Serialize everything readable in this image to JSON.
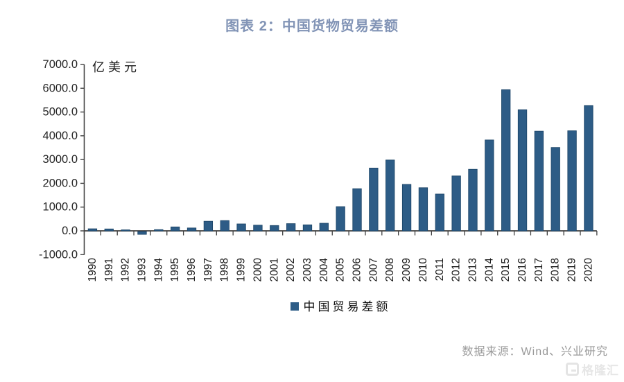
{
  "title": "图表 2：中国货物贸易差额",
  "chart_data": {
    "type": "bar",
    "title": "图表 2：中国货物贸易差额",
    "unit_label": "亿美元",
    "series_name": "中国贸易差额",
    "categories": [
      "1990",
      "1991",
      "1992",
      "1993",
      "1994",
      "1995",
      "1996",
      "1997",
      "1998",
      "1999",
      "2000",
      "2001",
      "2002",
      "2003",
      "2004",
      "2005",
      "2006",
      "2007",
      "2008",
      "2009",
      "2010",
      "2011",
      "2012",
      "2013",
      "2014",
      "2015",
      "2016",
      "2017",
      "2018",
      "2019",
      "2020"
    ],
    "values": [
      87.5,
      81.2,
      43.5,
      -122.2,
      53.9,
      167.0,
      122.2,
      404.2,
      434.7,
      292.3,
      241.1,
      225.5,
      304.3,
      254.7,
      320.9,
      1020.0,
      1774.7,
      2643.4,
      2981.3,
      1956.1,
      1815.1,
      1549.0,
      2311.1,
      2590.2,
      3824.6,
      5939.0,
      5097.0,
      4195.4,
      3509.5,
      4210.9,
      5269.9
    ],
    "ylim": [
      -1000,
      7000
    ],
    "ytick_step": 1000,
    "ytick_labels": [
      "-1000.0",
      "0.0",
      "1000.0",
      "2000.0",
      "3000.0",
      "4000.0",
      "5000.0",
      "6000.0",
      "7000.0"
    ],
    "grid": false,
    "legend_position": "bottom-center",
    "bar_color": "#2d5c86",
    "bar_border_color": "#1c4466",
    "axis_color": "#3f3f3f"
  },
  "legend": {
    "label": "中国贸易差额",
    "swatch_color": "#2d5c86"
  },
  "footer": {
    "source": "数据来源：Wind、兴业研究"
  },
  "watermark": {
    "text": "格隆汇",
    "icon": "gelonghui-logo-icon"
  }
}
